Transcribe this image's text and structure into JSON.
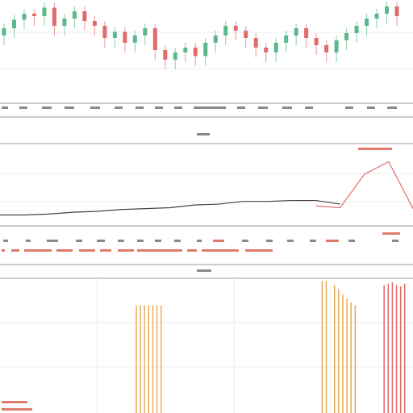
{
  "chart_data": [
    {
      "type": "candlestick",
      "x": [
        0,
        1,
        2,
        3,
        4,
        5,
        6,
        7,
        8,
        9,
        10,
        11,
        12,
        13,
        14,
        15,
        16,
        17,
        18,
        19,
        20,
        21,
        22,
        23,
        24,
        25,
        26,
        27,
        28,
        29,
        30,
        31,
        32,
        33,
        34,
        35,
        36,
        37,
        38,
        39
      ],
      "open": [
        72,
        78,
        85,
        90,
        88,
        95,
        80,
        86,
        92,
        84,
        80,
        70,
        75,
        66,
        72,
        78,
        60,
        52,
        58,
        62,
        55,
        66,
        72,
        80,
        76,
        70,
        62,
        58,
        66,
        72,
        78,
        70,
        64,
        58,
        68,
        74,
        80,
        86,
        90,
        96
      ],
      "close": [
        78,
        85,
        90,
        88,
        95,
        80,
        86,
        92,
        84,
        80,
        70,
        75,
        66,
        72,
        78,
        60,
        52,
        58,
        62,
        55,
        66,
        72,
        80,
        76,
        70,
        62,
        58,
        66,
        72,
        78,
        70,
        64,
        58,
        68,
        74,
        80,
        86,
        90,
        96,
        88
      ],
      "high": [
        82,
        89,
        94,
        94,
        99,
        99,
        90,
        96,
        96,
        88,
        84,
        79,
        79,
        76,
        82,
        82,
        64,
        62,
        66,
        66,
        70,
        76,
        84,
        84,
        80,
        74,
        66,
        70,
        76,
        82,
        82,
        74,
        68,
        72,
        78,
        84,
        90,
        94,
        100,
        100
      ],
      "low": [
        64,
        70,
        77,
        80,
        80,
        72,
        72,
        78,
        76,
        72,
        62,
        62,
        58,
        58,
        64,
        52,
        44,
        44,
        50,
        47,
        47,
        58,
        64,
        68,
        62,
        54,
        50,
        50,
        58,
        64,
        62,
        56,
        50,
        50,
        60,
        66,
        72,
        78,
        82,
        80
      ],
      "up_color": "#5cb88a",
      "down_color": "#e06b6b",
      "xlim": [
        -0.4,
        40.6
      ],
      "ylim": [
        20,
        100
      ]
    },
    {
      "type": "line",
      "x": [
        0,
        1,
        2,
        3,
        4,
        5,
        6,
        7,
        8,
        9,
        10,
        11,
        12,
        13,
        14,
        15,
        16,
        17
      ],
      "series": [
        {
          "color": "#4a4040",
          "values": [
            21,
            21,
            22,
            24,
            25,
            27,
            28,
            29,
            32,
            33,
            36,
            36,
            37,
            37,
            33,
            null,
            null,
            null
          ]
        },
        {
          "color": "#e06b6b",
          "values": [
            null,
            null,
            null,
            null,
            null,
            null,
            null,
            null,
            null,
            null,
            null,
            null,
            null,
            31,
            29,
            66,
            80,
            28
          ]
        }
      ],
      "xlim": [
        0,
        17
      ],
      "ylim": [
        0,
        100
      ]
    },
    {
      "type": "bar",
      "x": [
        33,
        34,
        35,
        36,
        37,
        38,
        39,
        78,
        79,
        81,
        82,
        83,
        84,
        85,
        86,
        93,
        94,
        95,
        96,
        97,
        98
      ],
      "values": [
        80,
        80,
        80,
        80,
        80,
        80,
        80,
        98,
        98,
        95,
        92,
        88,
        85,
        82,
        80,
        95,
        96,
        97,
        95,
        94,
        96
      ],
      "colors": [
        "#e8b060",
        "#e8b060",
        "#e8b060",
        "#e8b060",
        "#e8b060",
        "#e8b060",
        "#e8b060",
        "#e8a850",
        "#e8a850",
        "#e8a850",
        "#e8a850",
        "#e8a850",
        "#e8a850",
        "#e8a850",
        "#e8a850",
        "#e06b6b",
        "#e06b6b",
        "#e06b6b",
        "#e06b6b",
        "#e06b6b",
        "#e06b6b"
      ],
      "xlim": [
        0,
        100
      ],
      "ylim": [
        0,
        100
      ]
    }
  ]
}
